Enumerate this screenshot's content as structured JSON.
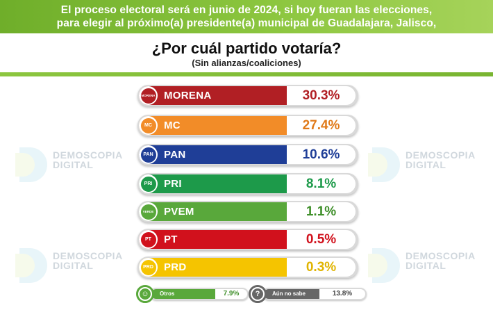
{
  "header": {
    "line1": "El proceso electoral será en junio de 2024, si hoy fueran las elecciones,",
    "line2": "para elegir al próximo(a) presidente(a) municipal de Guadalajara, Jalisco,"
  },
  "question": {
    "title": "¿Por cuál partido votaría?",
    "subtitle": "(Sin alianzas/coaliciones)"
  },
  "watermark": {
    "brand_line1": "DEMOSCOPIA",
    "brand_line2": "DIGITAL"
  },
  "colors": {
    "accent_green": "#8cc63f",
    "morena": "#b11f24",
    "mc": "#f28c28",
    "pan": "#1f3e97",
    "pri": "#1d9a4a",
    "pvem": "#59a83b",
    "pt": "#d1111c",
    "prd": "#f5c400",
    "otros": "#59a83b",
    "no_sabe": "#666666"
  },
  "chart_data": {
    "type": "bar",
    "categories": [
      "MORENA",
      "MC",
      "PAN",
      "PRI",
      "PVEM",
      "PT",
      "PRD"
    ],
    "values": [
      30.3,
      27.4,
      10.6,
      8.1,
      1.1,
      0.5,
      0.3
    ],
    "value_labels": [
      "30.3%",
      "27.4%",
      "10.6%",
      "8.1%",
      "1.1%",
      "0.5%",
      "0.3%"
    ],
    "logo_text": [
      "MORENA",
      "MC",
      "PAN",
      "PRI",
      "VERDE",
      "PT",
      "PRD"
    ],
    "extra": [
      {
        "label": "Otros",
        "value": 7.9,
        "value_label": "7.9%",
        "icon": "person-icon"
      },
      {
        "label": "Aún no sabe",
        "value": 13.8,
        "value_label": "13.8%",
        "icon": "question-icon"
      }
    ]
  }
}
